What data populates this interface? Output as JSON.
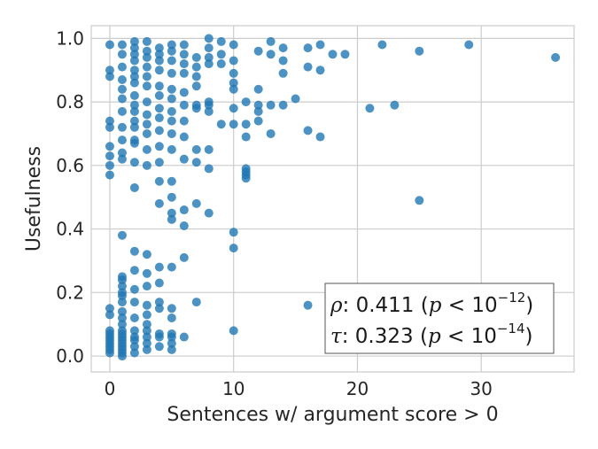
{
  "chart_data": {
    "type": "scatter",
    "xlabel": "Sentences w/ argument score > 0",
    "ylabel": "Usefulness",
    "xlim": [
      -1.5,
      37.5
    ],
    "ylim": [
      -0.05,
      1.04
    ],
    "xticks": [
      "0",
      "10",
      "20",
      "30"
    ],
    "yticks": [
      "0.0",
      "0.2",
      "0.4",
      "0.6",
      "0.8",
      "1.0"
    ],
    "grid": true,
    "color": "#1f77b4",
    "annotation": {
      "rho_symbol": "ρ",
      "rho_text": ": 0.411 (",
      "tau_symbol": "τ",
      "tau_text": ": 0.323 (",
      "p_symbol": "p",
      "lt_ten": " < 10",
      "rho_exp": "−12",
      "tau_exp": "−14",
      "close": ")",
      "placement": "lower-right"
    },
    "points": [
      [
        0,
        0.98
      ],
      [
        0,
        0.9
      ],
      [
        0,
        0.88
      ],
      [
        0,
        0.74
      ],
      [
        0,
        0.72
      ],
      [
        0,
        0.66
      ],
      [
        0,
        0.63
      ],
      [
        0,
        0.6
      ],
      [
        0,
        0.57
      ],
      [
        0,
        0.15
      ],
      [
        0,
        0.13
      ],
      [
        0,
        0.08
      ],
      [
        0,
        0.07
      ],
      [
        0,
        0.06
      ],
      [
        0,
        0.05
      ],
      [
        0,
        0.04
      ],
      [
        0,
        0.03
      ],
      [
        0,
        0.02
      ],
      [
        0,
        0.01
      ],
      [
        1,
        0.98
      ],
      [
        1,
        0.95
      ],
      [
        1,
        0.91
      ],
      [
        1,
        0.87
      ],
      [
        1,
        0.84
      ],
      [
        1,
        0.81
      ],
      [
        1,
        0.77
      ],
      [
        1,
        0.72
      ],
      [
        1,
        0.68
      ],
      [
        1,
        0.64
      ],
      [
        1,
        0.62
      ],
      [
        1,
        0.38
      ],
      [
        1,
        0.25
      ],
      [
        1,
        0.24
      ],
      [
        1,
        0.22
      ],
      [
        1,
        0.2
      ],
      [
        1,
        0.19
      ],
      [
        1,
        0.17
      ],
      [
        1,
        0.14
      ],
      [
        1,
        0.12
      ],
      [
        1,
        0.1
      ],
      [
        1,
        0.08
      ],
      [
        1,
        0.07
      ],
      [
        1,
        0.06
      ],
      [
        1,
        0.05
      ],
      [
        1,
        0.04
      ],
      [
        1,
        0.03
      ],
      [
        1,
        0.02
      ],
      [
        1,
        0.01
      ],
      [
        1,
        0.0
      ],
      [
        2,
        0.99
      ],
      [
        2,
        0.97
      ],
      [
        2,
        0.95
      ],
      [
        2,
        0.93
      ],
      [
        2,
        0.9
      ],
      [
        2,
        0.88
      ],
      [
        2,
        0.86
      ],
      [
        2,
        0.82
      ],
      [
        2,
        0.79
      ],
      [
        2,
        0.77
      ],
      [
        2,
        0.74
      ],
      [
        2,
        0.72
      ],
      [
        2,
        0.68
      ],
      [
        2,
        0.67
      ],
      [
        2,
        0.61
      ],
      [
        2,
        0.53
      ],
      [
        2,
        0.33
      ],
      [
        2,
        0.27
      ],
      [
        2,
        0.21
      ],
      [
        2,
        0.17
      ],
      [
        2,
        0.12
      ],
      [
        2,
        0.08
      ],
      [
        2,
        0.06
      ],
      [
        2,
        0.05
      ],
      [
        2,
        0.03
      ],
      [
        2,
        0.01
      ],
      [
        3,
        0.99
      ],
      [
        3,
        0.96
      ],
      [
        3,
        0.94
      ],
      [
        3,
        0.91
      ],
      [
        3,
        0.88
      ],
      [
        3,
        0.85
      ],
      [
        3,
        0.8
      ],
      [
        3,
        0.76
      ],
      [
        3,
        0.73
      ],
      [
        3,
        0.7
      ],
      [
        3,
        0.65
      ],
      [
        3,
        0.6
      ],
      [
        3,
        0.32
      ],
      [
        3,
        0.26
      ],
      [
        3,
        0.22
      ],
      [
        3,
        0.16
      ],
      [
        3,
        0.13
      ],
      [
        3,
        0.1
      ],
      [
        3,
        0.08
      ],
      [
        3,
        0.06
      ],
      [
        3,
        0.04
      ],
      [
        3,
        0.02
      ],
      [
        4,
        0.97
      ],
      [
        4,
        0.95
      ],
      [
        4,
        0.93
      ],
      [
        4,
        0.9
      ],
      [
        4,
        0.85
      ],
      [
        4,
        0.82
      ],
      [
        4,
        0.78
      ],
      [
        4,
        0.75
      ],
      [
        4,
        0.71
      ],
      [
        4,
        0.66
      ],
      [
        4,
        0.61
      ],
      [
        4,
        0.55
      ],
      [
        4,
        0.48
      ],
      [
        4,
        0.28
      ],
      [
        4,
        0.23
      ],
      [
        4,
        0.17
      ],
      [
        4,
        0.15
      ],
      [
        4,
        0.07
      ],
      [
        4,
        0.06
      ],
      [
        4,
        0.03
      ],
      [
        5,
        0.98
      ],
      [
        5,
        0.96
      ],
      [
        5,
        0.93
      ],
      [
        5,
        0.89
      ],
      [
        5,
        0.84
      ],
      [
        5,
        0.81
      ],
      [
        5,
        0.77
      ],
      [
        5,
        0.74
      ],
      [
        5,
        0.7
      ],
      [
        5,
        0.65
      ],
      [
        5,
        0.55
      ],
      [
        5,
        0.5
      ],
      [
        5,
        0.45
      ],
      [
        5,
        0.43
      ],
      [
        5,
        0.28
      ],
      [
        5,
        0.15
      ],
      [
        5,
        0.12
      ],
      [
        5,
        0.07
      ],
      [
        5,
        0.06
      ],
      [
        5,
        0.04
      ],
      [
        5,
        0.02
      ],
      [
        6,
        0.98
      ],
      [
        6,
        0.95
      ],
      [
        6,
        0.92
      ],
      [
        6,
        0.89
      ],
      [
        6,
        0.83
      ],
      [
        6,
        0.79
      ],
      [
        6,
        0.74
      ],
      [
        6,
        0.69
      ],
      [
        6,
        0.62
      ],
      [
        6,
        0.46
      ],
      [
        6,
        0.41
      ],
      [
        6,
        0.31
      ],
      [
        6,
        0.06
      ],
      [
        7,
        0.94
      ],
      [
        7,
        0.91
      ],
      [
        7,
        0.88
      ],
      [
        7,
        0.85
      ],
      [
        7,
        0.79
      ],
      [
        7,
        0.78
      ],
      [
        7,
        0.65
      ],
      [
        7,
        0.61
      ],
      [
        7,
        0.48
      ],
      [
        7,
        0.17
      ],
      [
        8,
        1.0
      ],
      [
        8,
        0.97
      ],
      [
        8,
        0.94
      ],
      [
        8,
        0.92
      ],
      [
        8,
        0.8
      ],
      [
        8,
        0.79
      ],
      [
        8,
        0.77
      ],
      [
        8,
        0.65
      ],
      [
        8,
        0.59
      ],
      [
        8,
        0.45
      ],
      [
        9,
        0.99
      ],
      [
        9,
        0.95
      ],
      [
        9,
        0.92
      ],
      [
        9,
        0.73
      ],
      [
        10,
        0.98
      ],
      [
        10,
        0.93
      ],
      [
        10,
        0.89
      ],
      [
        10,
        0.86
      ],
      [
        10,
        0.84
      ],
      [
        10,
        0.78
      ],
      [
        10,
        0.73
      ],
      [
        10,
        0.39
      ],
      [
        10,
        0.34
      ],
      [
        10,
        0.08
      ],
      [
        11,
        0.8
      ],
      [
        11,
        0.73
      ],
      [
        11,
        0.69
      ],
      [
        11,
        0.59
      ],
      [
        11,
        0.58
      ],
      [
        11,
        0.57
      ],
      [
        11,
        0.56
      ],
      [
        12,
        0.96
      ],
      [
        12,
        0.84
      ],
      [
        12,
        0.79
      ],
      [
        12,
        0.77
      ],
      [
        12,
        0.74
      ],
      [
        13,
        0.99
      ],
      [
        13,
        0.95
      ],
      [
        13,
        0.79
      ],
      [
        13,
        0.7
      ],
      [
        14,
        0.97
      ],
      [
        14,
        0.93
      ],
      [
        14,
        0.89
      ],
      [
        14,
        0.79
      ],
      [
        15,
        0.81
      ],
      [
        16,
        0.97
      ],
      [
        16,
        0.91
      ],
      [
        16,
        0.71
      ],
      [
        16,
        0.16
      ],
      [
        17,
        0.98
      ],
      [
        17,
        0.9
      ],
      [
        17,
        0.69
      ],
      [
        18,
        0.95
      ],
      [
        19,
        0.95
      ],
      [
        21,
        0.78
      ],
      [
        22,
        0.98
      ],
      [
        23,
        0.79
      ],
      [
        25,
        0.96
      ],
      [
        25,
        0.49
      ],
      [
        29,
        0.98
      ],
      [
        36,
        0.94
      ]
    ]
  }
}
